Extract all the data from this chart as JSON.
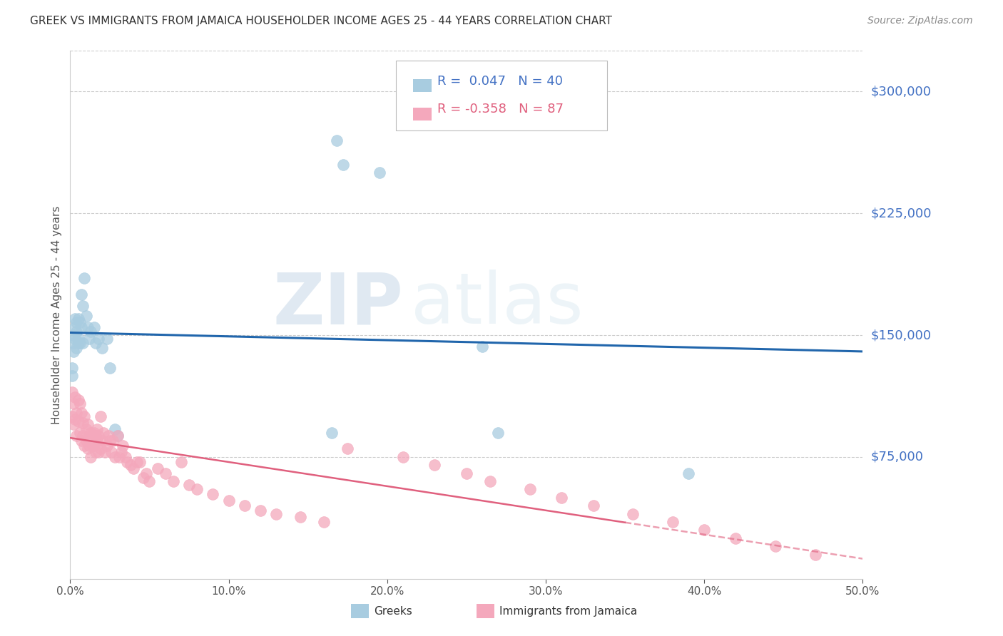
{
  "title": "GREEK VS IMMIGRANTS FROM JAMAICA HOUSEHOLDER INCOME AGES 25 - 44 YEARS CORRELATION CHART",
  "source": "Source: ZipAtlas.com",
  "ylabel": "Householder Income Ages 25 - 44 years",
  "ytick_labels": [
    "$300,000",
    "$225,000",
    "$150,000",
    "$75,000"
  ],
  "ytick_values": [
    300000,
    225000,
    150000,
    75000
  ],
  "ylim": [
    0,
    325000
  ],
  "xlim": [
    0.0,
    0.5
  ],
  "legend_blue_r": "0.047",
  "legend_blue_n": "40",
  "legend_pink_r": "-0.358",
  "legend_pink_n": "87",
  "blue_color": "#a8cce0",
  "pink_color": "#f4a8bc",
  "trend_blue_color": "#2166ac",
  "trend_pink_color": "#e0607e",
  "watermark_zip": "ZIP",
  "watermark_atlas": "atlas",
  "greek_x": [
    0.001,
    0.001,
    0.002,
    0.002,
    0.002,
    0.003,
    0.003,
    0.003,
    0.004,
    0.004,
    0.004,
    0.005,
    0.005,
    0.005,
    0.006,
    0.006,
    0.007,
    0.007,
    0.008,
    0.008,
    0.009,
    0.01,
    0.011,
    0.012,
    0.013,
    0.015,
    0.016,
    0.018,
    0.02,
    0.023,
    0.025,
    0.028,
    0.03,
    0.165,
    0.168,
    0.172,
    0.195,
    0.26,
    0.27,
    0.39
  ],
  "greek_y": [
    130000,
    125000,
    145000,
    150000,
    140000,
    155000,
    148000,
    160000,
    142000,
    152000,
    158000,
    148000,
    160000,
    145000,
    158000,
    145000,
    155000,
    175000,
    168000,
    145000,
    185000,
    162000,
    155000,
    148000,
    152000,
    155000,
    145000,
    148000,
    142000,
    148000,
    130000,
    92000,
    88000,
    90000,
    270000,
    255000,
    250000,
    143000,
    90000,
    65000
  ],
  "jamaica_x": [
    0.001,
    0.001,
    0.002,
    0.002,
    0.003,
    0.003,
    0.004,
    0.004,
    0.005,
    0.005,
    0.006,
    0.006,
    0.007,
    0.007,
    0.008,
    0.008,
    0.009,
    0.009,
    0.01,
    0.01,
    0.011,
    0.011,
    0.012,
    0.012,
    0.013,
    0.013,
    0.014,
    0.014,
    0.015,
    0.015,
    0.016,
    0.016,
    0.017,
    0.017,
    0.018,
    0.018,
    0.019,
    0.019,
    0.02,
    0.021,
    0.022,
    0.023,
    0.024,
    0.025,
    0.026,
    0.027,
    0.028,
    0.03,
    0.031,
    0.032,
    0.033,
    0.035,
    0.036,
    0.038,
    0.04,
    0.042,
    0.044,
    0.046,
    0.048,
    0.05,
    0.055,
    0.06,
    0.065,
    0.07,
    0.075,
    0.08,
    0.09,
    0.1,
    0.11,
    0.12,
    0.13,
    0.145,
    0.16,
    0.175,
    0.21,
    0.23,
    0.25,
    0.265,
    0.29,
    0.31,
    0.33,
    0.355,
    0.38,
    0.4,
    0.42,
    0.445,
    0.47
  ],
  "jamaica_y": [
    115000,
    100000,
    108000,
    95000,
    112000,
    98000,
    102000,
    88000,
    110000,
    97000,
    108000,
    90000,
    102000,
    85000,
    96000,
    88000,
    100000,
    82000,
    92000,
    85000,
    95000,
    80000,
    88000,
    82000,
    90000,
    75000,
    82000,
    88000,
    90000,
    82000,
    88000,
    78000,
    85000,
    92000,
    78000,
    88000,
    80000,
    100000,
    85000,
    90000,
    78000,
    82000,
    88000,
    85000,
    78000,
    85000,
    75000,
    88000,
    75000,
    78000,
    82000,
    75000,
    72000,
    70000,
    68000,
    72000,
    72000,
    62000,
    65000,
    60000,
    68000,
    65000,
    60000,
    72000,
    58000,
    55000,
    52000,
    48000,
    45000,
    42000,
    40000,
    38000,
    35000,
    80000,
    75000,
    70000,
    65000,
    60000,
    55000,
    50000,
    45000,
    40000,
    35000,
    30000,
    25000,
    20000,
    15000
  ]
}
